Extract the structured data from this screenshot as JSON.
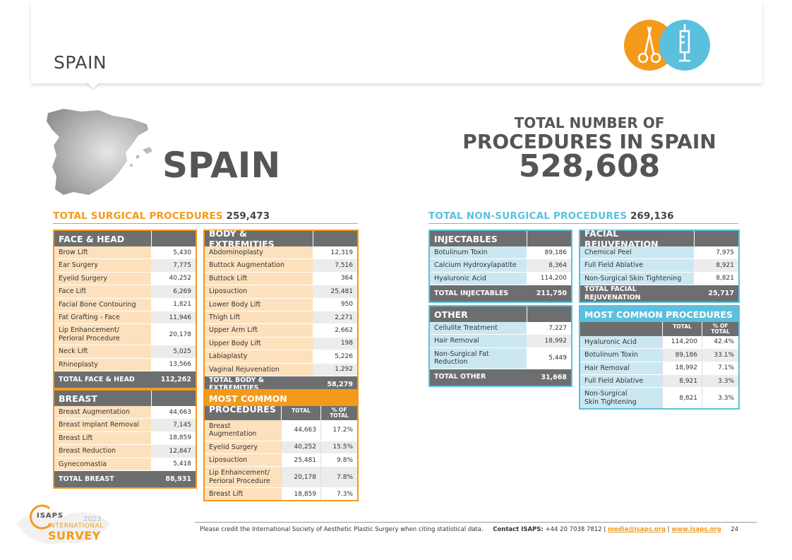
{
  "header": {
    "title": "SPAIN"
  },
  "country_title": "SPAIN",
  "total": {
    "line1": "TOTAL NUMBER OF",
    "line2": "PROCEDURES IN SPAIN",
    "value": "528,608"
  },
  "surgical": {
    "label": "TOTAL SURGICAL PROCEDURES",
    "value": "259,473",
    "face_head": {
      "title": "FACE & HEAD",
      "rows": [
        {
          "name": "Brow Lift",
          "value": "5,430"
        },
        {
          "name": "Ear Surgery",
          "value": "7,775"
        },
        {
          "name": "Eyelid Surgery",
          "value": "40,252"
        },
        {
          "name": "Face Lift",
          "value": "6,269"
        },
        {
          "name": "Facial Bone Contouring",
          "value": "1,821"
        },
        {
          "name": "Fat Grafting - Face",
          "value": "11,946"
        },
        {
          "name": "Lip Enhancement/\nPerioral Procedure",
          "value": "20,178"
        },
        {
          "name": "Neck Lift",
          "value": "5,025"
        },
        {
          "name": "Rhinoplasty",
          "value": "13,566"
        }
      ],
      "total_label": "TOTAL FACE & HEAD",
      "total_value": "112,262"
    },
    "body": {
      "title": "BODY & EXTREMITIES",
      "rows": [
        {
          "name": "Abdominoplasty",
          "value": "12,319"
        },
        {
          "name": "Buttock Augmentation",
          "value": "7,516"
        },
        {
          "name": "Buttock Lift",
          "value": "364"
        },
        {
          "name": "Liposuction",
          "value": "25,481"
        },
        {
          "name": "Lower Body Lift",
          "value": "950"
        },
        {
          "name": "Thigh Lift",
          "value": "2,271"
        },
        {
          "name": "Upper Arm Lift",
          "value": "2,662"
        },
        {
          "name": "Upper Body Lift",
          "value": "198"
        },
        {
          "name": "Labiaplasty",
          "value": "5,226"
        },
        {
          "name": "Vaginal Rejuvenation",
          "value": "1,292"
        }
      ],
      "total_label": "TOTAL BODY & EXTREMITIES",
      "total_value": "58,279"
    },
    "breast": {
      "title": "BREAST",
      "rows": [
        {
          "name": "Breast Augmentation",
          "value": "44,663"
        },
        {
          "name": "Breast Implant Removal",
          "value": "7,145"
        },
        {
          "name": "Breast Lift",
          "value": "18,859"
        },
        {
          "name": "Breast Reduction",
          "value": "12,847"
        },
        {
          "name": "Gynecomastia",
          "value": "5,418"
        }
      ],
      "total_label": "TOTAL BREAST",
      "total_value": "88,931"
    },
    "most_common": {
      "title": "MOST COMMON PROCEDURES",
      "col_total": "TOTAL",
      "col_pct": "% OF\nTOTAL",
      "rows": [
        {
          "name": "Breast Augmentation",
          "total": "44,663",
          "pct": "17.2%"
        },
        {
          "name": "Eyelid Surgery",
          "total": "40,252",
          "pct": "15.5%"
        },
        {
          "name": "Liposuction",
          "total": "25,481",
          "pct": "9.8%"
        },
        {
          "name": "Lip Enhancement/\nPerioral Procedure",
          "total": "20,178",
          "pct": "7.8%"
        },
        {
          "name": "Breast Lift",
          "total": "18,859",
          "pct": "7.3%"
        }
      ]
    }
  },
  "nonsurgical": {
    "label": "TOTAL NON-SURGICAL PROCEDURES",
    "value": "269,136",
    "injectables": {
      "title": "INJECTABLES",
      "rows": [
        {
          "name": "Botulinum Toxin",
          "value": "89,186"
        },
        {
          "name": "Calcium Hydroxylapatite",
          "value": "8,364"
        },
        {
          "name": "Hyaluronic Acid",
          "value": "114,200"
        }
      ],
      "total_label": "TOTAL INJECTABLES",
      "total_value": "211,750"
    },
    "facial": {
      "title": "FACIAL REJUVENATION",
      "rows": [
        {
          "name": "Chemical Peel",
          "value": "7,975"
        },
        {
          "name": "Full Field Ablative",
          "value": "8,921"
        },
        {
          "name": "Non-Surgical Skin Tightening",
          "value": "8,821"
        }
      ],
      "total_label": "TOTAL FACIAL REJUVENATION",
      "total_value": "25,717"
    },
    "other": {
      "title": "OTHER",
      "rows": [
        {
          "name": "Cellulite Treatment",
          "value": "7,227"
        },
        {
          "name": "Hair Removal",
          "value": "18,992"
        },
        {
          "name": "Non-Surgical Fat Reduction",
          "value": "5,449"
        }
      ],
      "total_label": "TOTAL OTHER",
      "total_value": "31,668"
    },
    "most_common": {
      "title": "MOST COMMON PROCEDURES",
      "col_total": "TOTAL",
      "col_pct": "% OF\nTOTAL",
      "rows": [
        {
          "name": "Hyaluronic Acid",
          "total": "114,200",
          "pct": "42.4%"
        },
        {
          "name": "Botulinum Toxin",
          "total": "89,186",
          "pct": "33.1%"
        },
        {
          "name": "Hair Removal",
          "total": "18,992",
          "pct": "7.1%"
        },
        {
          "name": "Full Field Ablative",
          "total": "8,921",
          "pct": "3.3%"
        },
        {
          "name": "Non-Surgical\nSkin Tightening",
          "total": "8,821",
          "pct": "3.3%"
        }
      ]
    }
  },
  "logo": {
    "brand": "ISAPS",
    "year": "2023",
    "line1": "INTERNATIONAL",
    "line2": "SURVEY"
  },
  "footer": {
    "credit": "Please credit the International Society of Aesthetic Plastic Surgery when citing statistical data.",
    "contact_label": "Contact ISAPS:",
    "phone": "+44 20 7038 7812",
    "email": "media@isaps.org",
    "web": "www.isaps.org",
    "page": "24"
  },
  "colors": {
    "orange": "#f49a1a",
    "blue": "#5bc0de",
    "grey": "#6d6e70"
  }
}
